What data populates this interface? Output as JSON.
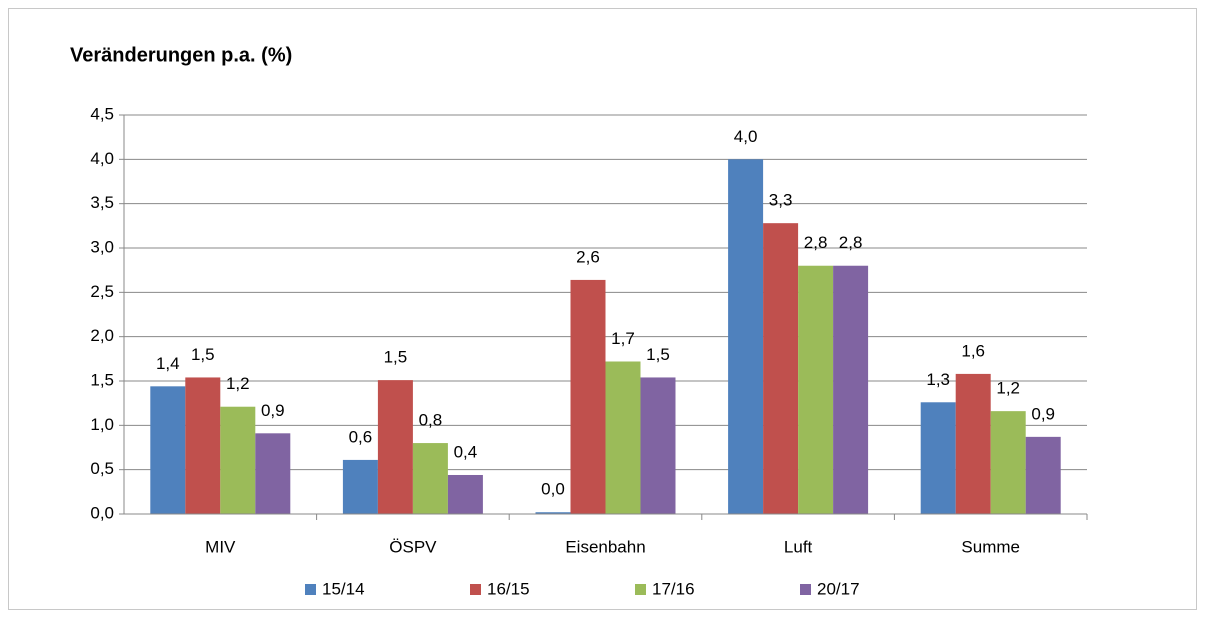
{
  "chart_data": {
    "type": "bar",
    "title": "Veränderungen p.a. (%)",
    "categories": [
      "MIV",
      "ÖSPV",
      "Eisenbahn",
      "Luft",
      "Summe"
    ],
    "series": [
      {
        "name": "15/14",
        "color": "#4f81bd",
        "values": [
          1.44,
          0.61,
          0.02,
          4.0,
          1.26
        ],
        "value_labels": [
          "1,4",
          "0,6",
          "0,0",
          "4,0",
          "1,3"
        ]
      },
      {
        "name": "16/15",
        "color": "#c0504d",
        "values": [
          1.54,
          1.51,
          2.64,
          3.28,
          1.58
        ],
        "value_labels": [
          "1,5",
          "1,5",
          "2,6",
          "3,3",
          "1,6"
        ]
      },
      {
        "name": "17/16",
        "color": "#9bbb59",
        "values": [
          1.21,
          0.8,
          1.72,
          2.8,
          1.16
        ],
        "value_labels": [
          "1,2",
          "0,8",
          "1,7",
          "2,8",
          "1,2"
        ]
      },
      {
        "name": "20/17",
        "color": "#8064a2",
        "values": [
          0.91,
          0.44,
          1.54,
          2.8,
          0.87
        ],
        "value_labels": [
          "0,9",
          "0,4",
          "1,5",
          "2,8",
          "0,9"
        ]
      }
    ],
    "ylim": [
      0,
      4.5
    ],
    "yticks": [
      {
        "value": 0,
        "label": "0,0"
      },
      {
        "value": 0.5,
        "label": "0,5"
      },
      {
        "value": 1,
        "label": "1,0"
      },
      {
        "value": 1.5,
        "label": "1,5"
      },
      {
        "value": 2,
        "label": "2,0"
      },
      {
        "value": 2.5,
        "label": "2,5"
      },
      {
        "value": 3,
        "label": "3,0"
      },
      {
        "value": 3.5,
        "label": "3,5"
      },
      {
        "value": 4,
        "label": "4,0"
      },
      {
        "value": 4.5,
        "label": "4,5"
      }
    ],
    "grid": true,
    "legend": "bottom"
  }
}
